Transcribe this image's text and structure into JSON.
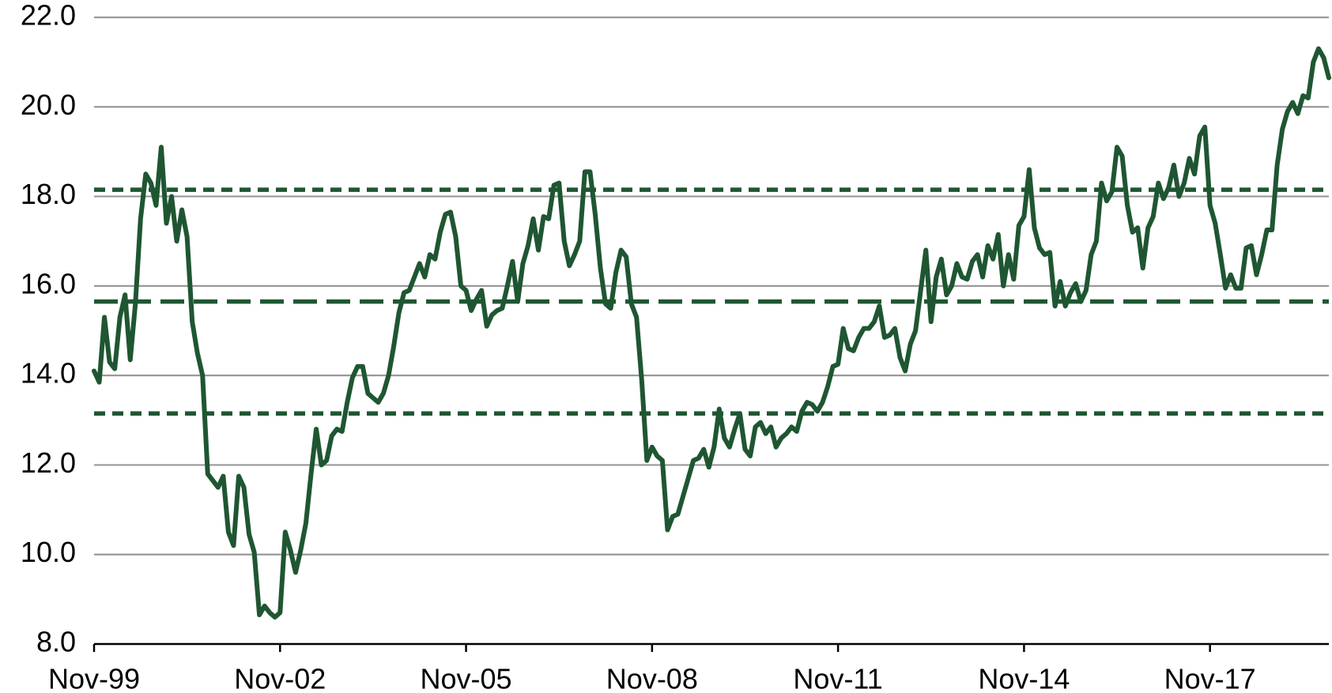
{
  "chart_data": {
    "type": "line",
    "categories": [
      "Nov-99",
      null,
      null,
      null,
      null,
      null,
      null,
      null,
      null,
      null,
      null,
      null,
      null,
      null,
      null,
      null,
      null,
      null,
      null,
      null,
      null,
      null,
      null,
      null,
      null,
      null,
      null,
      null,
      null,
      null,
      null,
      null,
      null,
      null,
      null,
      null,
      "Nov-02",
      null,
      null,
      null,
      null,
      null,
      null,
      null,
      null,
      null,
      null,
      null,
      null,
      null,
      null,
      null,
      null,
      null,
      null,
      null,
      null,
      null,
      null,
      null,
      null,
      null,
      null,
      null,
      null,
      null,
      null,
      null,
      null,
      null,
      null,
      null,
      "Nov-05",
      null,
      null,
      null,
      null,
      null,
      null,
      null,
      null,
      null,
      null,
      null,
      null,
      null,
      null,
      null,
      null,
      null,
      null,
      null,
      null,
      null,
      null,
      null,
      null,
      null,
      null,
      null,
      null,
      null,
      null,
      null,
      null,
      null,
      null,
      null,
      "Nov-08",
      null,
      null,
      null,
      null,
      null,
      null,
      null,
      null,
      null,
      null,
      null,
      null,
      null,
      null,
      null,
      null,
      null,
      null,
      null,
      null,
      null,
      null,
      null,
      null,
      null,
      null,
      null,
      null,
      null,
      null,
      null,
      null,
      null,
      null,
      null,
      "Nov-11",
      null,
      null,
      null,
      null,
      null,
      null,
      null,
      null,
      null,
      null,
      null,
      null,
      null,
      null,
      null,
      null,
      null,
      null,
      null,
      null,
      null,
      null,
      null,
      null,
      null,
      null,
      null,
      null,
      null,
      null,
      null,
      null,
      null,
      null,
      null,
      "Nov-14",
      null,
      null,
      null,
      null,
      null,
      null,
      null,
      null,
      null,
      null,
      null,
      null,
      null,
      null,
      null,
      null,
      null,
      null,
      null,
      null,
      null,
      null,
      null,
      null,
      null,
      null,
      null,
      null,
      null,
      null,
      null,
      null,
      null,
      null,
      null,
      "Nov-17",
      null,
      null,
      null,
      null,
      null,
      null,
      null,
      null,
      null,
      null,
      null,
      null,
      null,
      null,
      null,
      null,
      null,
      null,
      null,
      null,
      null,
      null,
      null
    ],
    "series": [
      {
        "color": "#1f5632",
        "values": [
          14.1,
          13.85,
          15.3,
          14.3,
          14.15,
          15.3,
          15.8,
          14.35,
          15.6,
          17.5,
          18.5,
          18.3,
          17.8,
          19.1,
          17.4,
          18.0,
          17.0,
          17.7,
          17.1,
          15.2,
          14.5,
          14.0,
          11.8,
          11.65,
          11.5,
          11.75,
          10.5,
          10.2,
          11.75,
          11.5,
          10.45,
          10.05,
          8.65,
          8.85,
          8.7,
          8.6,
          8.7,
          10.5,
          10.1,
          9.6,
          10.1,
          10.7,
          11.8,
          12.8,
          12.0,
          12.1,
          12.65,
          12.8,
          12.75,
          13.4,
          13.95,
          14.2,
          14.2,
          13.6,
          13.5,
          13.4,
          13.6,
          14.0,
          14.65,
          15.4,
          15.85,
          15.9,
          16.2,
          16.5,
          16.2,
          16.7,
          16.6,
          17.2,
          17.6,
          17.65,
          17.1,
          16.0,
          15.9,
          15.45,
          15.7,
          15.9,
          15.1,
          15.35,
          15.45,
          15.5,
          16.0,
          16.55,
          15.65,
          16.5,
          16.9,
          17.5,
          16.8,
          17.55,
          17.5,
          18.25,
          18.3,
          17.0,
          16.45,
          16.7,
          17.0,
          18.55,
          18.55,
          17.6,
          16.4,
          15.6,
          15.5,
          16.3,
          16.8,
          16.65,
          15.6,
          15.3,
          13.9,
          12.1,
          12.4,
          12.2,
          12.1,
          10.55,
          10.85,
          10.9,
          11.3,
          11.7,
          12.1,
          12.15,
          12.35,
          11.95,
          12.4,
          13.25,
          12.6,
          12.4,
          12.8,
          13.15,
          12.35,
          12.2,
          12.85,
          12.95,
          12.7,
          12.85,
          12.4,
          12.6,
          12.7,
          12.85,
          12.75,
          13.2,
          13.4,
          13.35,
          13.2,
          13.4,
          13.75,
          14.2,
          14.25,
          15.05,
          14.6,
          14.55,
          14.85,
          15.05,
          15.05,
          15.2,
          15.55,
          14.85,
          14.9,
          15.05,
          14.4,
          14.1,
          14.7,
          15.0,
          15.9,
          16.8,
          15.2,
          16.2,
          16.6,
          15.8,
          16.0,
          16.5,
          16.2,
          16.15,
          16.55,
          16.7,
          16.2,
          16.9,
          16.6,
          17.15,
          16.0,
          16.7,
          16.15,
          17.35,
          17.55,
          18.6,
          17.3,
          16.85,
          16.7,
          16.75,
          15.55,
          16.1,
          15.55,
          15.85,
          16.05,
          15.65,
          15.9,
          16.7,
          17.0,
          18.3,
          17.9,
          18.1,
          19.1,
          18.9,
          17.8,
          17.2,
          17.3,
          16.4,
          17.3,
          17.55,
          18.3,
          17.95,
          18.2,
          18.7,
          18.0,
          18.3,
          18.85,
          18.5,
          19.35,
          19.55,
          17.8,
          17.4,
          16.7,
          15.95,
          16.25,
          15.95,
          15.95,
          16.85,
          16.9,
          16.25,
          16.7,
          17.25,
          17.25,
          18.7,
          19.5,
          19.9,
          20.1,
          19.85,
          20.25,
          20.2,
          21.0,
          21.3,
          21.1,
          20.65
        ]
      }
    ],
    "reference_lines": [
      {
        "value": 18.15,
        "color": "#1f5632",
        "dash": "short"
      },
      {
        "value": 15.65,
        "color": "#1f5632",
        "dash": "long"
      },
      {
        "value": 13.15,
        "color": "#1f5632",
        "dash": "short"
      }
    ],
    "ylim": [
      8,
      22
    ],
    "yticks": [
      {
        "value": 8,
        "label": "8.0"
      },
      {
        "value": 10,
        "label": "10.0"
      },
      {
        "value": 12,
        "label": "12.0"
      },
      {
        "value": 14,
        "label": "14.0"
      },
      {
        "value": 16,
        "label": "16.0"
      },
      {
        "value": 18,
        "label": "18.0"
      },
      {
        "value": 20,
        "label": "20.0"
      },
      {
        "value": 22,
        "label": "22.0"
      }
    ],
    "grid": true
  }
}
